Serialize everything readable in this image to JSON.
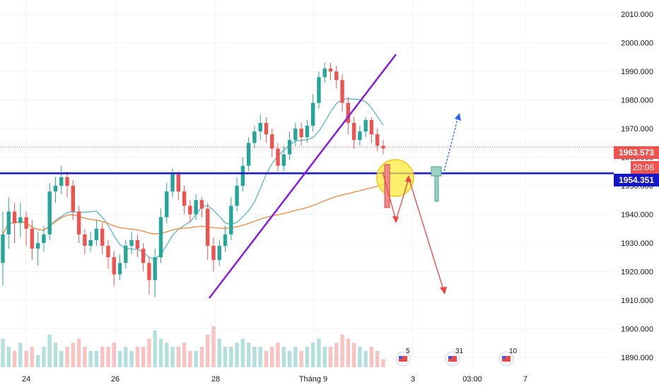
{
  "chart_data": {
    "type": "candlestick",
    "x_axis": {
      "tick_labels": [
        "24",
        "26",
        "28",
        "Tháng 9",
        "3",
        "03:00",
        "7"
      ]
    },
    "y_axis": {
      "tick_labels": [
        "2010.000",
        "2000.000",
        "1990.000",
        "1980.000",
        "1970.000",
        "1960.000",
        "1950.000",
        "1940.000",
        "1930.000",
        "1920.000",
        "1910.000",
        "1900.000",
        "1890.000"
      ],
      "range": [
        1886.5,
        2015
      ]
    },
    "price_labels": {
      "current_price": "1963.573",
      "countdown": "20:06",
      "support_level": "1954.351"
    },
    "levels": {
      "current": 1963.573,
      "support": 1954.351
    },
    "event_markers": [
      "5",
      "31",
      "10"
    ],
    "candles": [
      [
        1923,
        1933,
        1915,
        1941
      ],
      [
        1933,
        1941,
        1928,
        1946
      ],
      [
        1941,
        1937,
        1930,
        1944
      ],
      [
        1937,
        1939,
        1932,
        1944
      ],
      [
        1939,
        1935,
        1929,
        1941
      ],
      [
        1935,
        1928,
        1924,
        1938
      ],
      [
        1928,
        1930,
        1922,
        1934
      ],
      [
        1930,
        1933,
        1927,
        1936
      ],
      [
        1933,
        1948,
        1931,
        1951
      ],
      [
        1948,
        1950,
        1944,
        1953
      ],
      [
        1950,
        1953,
        1947,
        1957
      ],
      [
        1953,
        1950,
        1946,
        1955
      ],
      [
        1950,
        1941,
        1938,
        1952
      ],
      [
        1941,
        1933,
        1930,
        1943
      ],
      [
        1933,
        1929,
        1926,
        1935
      ],
      [
        1929,
        1931,
        1927,
        1934
      ],
      [
        1931,
        1935,
        1929,
        1938
      ],
      [
        1935,
        1929,
        1926,
        1937
      ],
      [
        1929,
        1925,
        1921,
        1931
      ],
      [
        1925,
        1919,
        1915,
        1927
      ],
      [
        1919,
        1923,
        1917,
        1926
      ],
      [
        1923,
        1929,
        1921,
        1931
      ],
      [
        1929,
        1931,
        1926,
        1934
      ],
      [
        1931,
        1928,
        1925,
        1933
      ],
      [
        1928,
        1923,
        1920,
        1930
      ],
      [
        1923,
        1917,
        1912,
        1925
      ],
      [
        1917,
        1925,
        1911,
        1928
      ],
      [
        1925,
        1939,
        1923,
        1942
      ],
      [
        1939,
        1948,
        1937,
        1951
      ],
      [
        1948,
        1954,
        1946,
        1956
      ],
      [
        1954,
        1948,
        1945,
        1955
      ],
      [
        1948,
        1943,
        1940,
        1950
      ],
      [
        1943,
        1940,
        1937,
        1945
      ],
      [
        1940,
        1945,
        1938,
        1947
      ],
      [
        1945,
        1942,
        1939,
        1946
      ],
      [
        1942,
        1929,
        1924,
        1944
      ],
      [
        1929,
        1924,
        1920,
        1932
      ],
      [
        1924,
        1929,
        1922,
        1931
      ],
      [
        1929,
        1933,
        1927,
        1936
      ],
      [
        1933,
        1943,
        1931,
        1946
      ],
      [
        1943,
        1950,
        1941,
        1953
      ],
      [
        1950,
        1957,
        1948,
        1960
      ],
      [
        1957,
        1965,
        1955,
        1967
      ],
      [
        1965,
        1969,
        1963,
        1971
      ],
      [
        1969,
        1972,
        1966,
        1975
      ],
      [
        1972,
        1968,
        1965,
        1974
      ],
      [
        1968,
        1963,
        1960,
        1970
      ],
      [
        1963,
        1957,
        1955,
        1965
      ],
      [
        1957,
        1961,
        1955,
        1964
      ],
      [
        1961,
        1966,
        1959,
        1969
      ],
      [
        1966,
        1970,
        1964,
        1972
      ],
      [
        1970,
        1967,
        1964,
        1972
      ],
      [
        1967,
        1971,
        1965,
        1973
      ],
      [
        1971,
        1979,
        1969,
        1982
      ],
      [
        1979,
        1988,
        1977,
        1990
      ],
      [
        1988,
        1991,
        1986,
        1993
      ],
      [
        1991,
        1990,
        1987,
        1993
      ],
      [
        1990,
        1987,
        1984,
        1992
      ],
      [
        1987,
        1979,
        1976,
        1989
      ],
      [
        1979,
        1972,
        1968,
        1981
      ],
      [
        1972,
        1966,
        1963,
        1974
      ],
      [
        1966,
        1969,
        1964,
        1971
      ],
      [
        1969,
        1973,
        1967,
        1974
      ],
      [
        1973,
        1968,
        1965,
        1974
      ],
      [
        1968,
        1964,
        1962,
        1970
      ],
      [
        1964,
        1963,
        1961,
        1966
      ]
    ],
    "volumes": [
      7,
      5,
      4,
      6,
      4,
      5,
      3,
      5,
      8,
      6,
      4,
      5,
      6,
      7,
      5,
      4,
      4,
      5,
      5,
      6,
      4,
      5,
      4,
      5,
      5,
      7,
      9,
      7,
      6,
      5,
      5,
      6,
      4,
      4,
      5,
      8,
      10,
      7,
      5,
      5,
      6,
      7,
      6,
      5,
      5,
      4,
      5,
      6,
      5,
      4,
      5,
      4,
      5,
      6,
      7,
      5,
      5,
      6,
      8,
      7,
      6,
      5,
      4,
      5,
      4,
      2
    ],
    "moving_averages": [
      {
        "color": "#5bb6c8",
        "period": 9
      },
      {
        "color": "#f0883a",
        "period": 60
      }
    ],
    "colors": {
      "up": "#26a69a",
      "down": "#ef5350",
      "support_line": "#1515c8",
      "trend_line": "#8a1be2",
      "projection_down": "#ef4444",
      "projection_up": "#2962ff",
      "highlight": "#ffeb3b"
    }
  }
}
